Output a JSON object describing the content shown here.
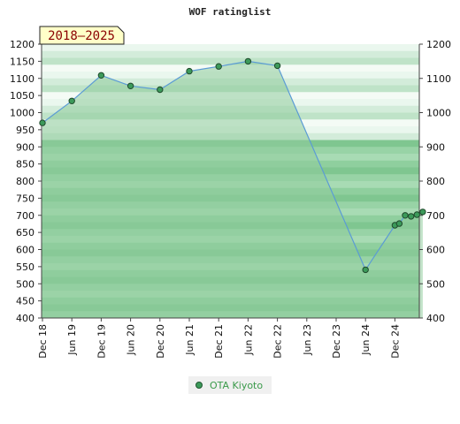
{
  "chart_data": {
    "type": "area",
    "title": "WOF ratinglist",
    "badge": "2018–2025",
    "ylim": [
      400,
      1200
    ],
    "y_ticks": [
      400,
      450,
      500,
      550,
      600,
      650,
      700,
      750,
      800,
      850,
      900,
      950,
      1000,
      1050,
      1100,
      1150,
      1200
    ],
    "y_ticks_right": [
      400,
      500,
      600,
      700,
      800,
      900,
      1000,
      1100,
      1200
    ],
    "x_ticks": [
      "Dec 18",
      "Jun 19",
      "Dec 19",
      "Jun 20",
      "Dec 20",
      "Jun 21",
      "Dec 21",
      "Jun 22",
      "Dec 22",
      "Jun 23",
      "Dec 23",
      "Jun 24",
      "Dec 24"
    ],
    "series": [
      {
        "name": "OTA Kiyoto",
        "color": "#5b9bd5",
        "fill": "#8fcc9c",
        "marker_color": "#3c9a5a",
        "points": [
          {
            "t": 0,
            "v": 970
          },
          {
            "t": 1,
            "v": 1034
          },
          {
            "t": 2,
            "v": 1109
          },
          {
            "t": 3,
            "v": 1078
          },
          {
            "t": 4,
            "v": 1067
          },
          {
            "t": 5,
            "v": 1121
          },
          {
            "t": 6,
            "v": 1135
          },
          {
            "t": 7,
            "v": 1150
          },
          {
            "t": 8,
            "v": 1137
          },
          {
            "t": 11,
            "v": 541
          },
          {
            "t": 12,
            "v": 671
          },
          {
            "t": 12.15,
            "v": 676
          },
          {
            "t": 12.35,
            "v": 700
          },
          {
            "t": 12.55,
            "v": 697
          },
          {
            "t": 12.75,
            "v": 702
          },
          {
            "t": 12.95,
            "v": 710
          }
        ]
      }
    ]
  },
  "legend": {
    "label": "OTA Kiyoto"
  }
}
